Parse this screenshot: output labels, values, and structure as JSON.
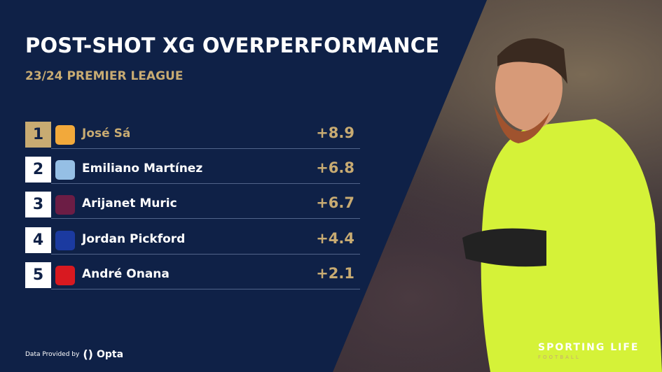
{
  "title": "POST-SHOT XG OVERPERFORMANCE",
  "subtitle": "23/24 PREMIER LEAGUE",
  "colors": {
    "background": "#0f2147",
    "accent": "#c8ab72"
  },
  "rows": [
    {
      "rank": "1",
      "player": "José Sá",
      "club_crest": "wolves-crest",
      "value": "+8.9",
      "crest_color": "#f2a93b"
    },
    {
      "rank": "2",
      "player": "Emiliano Martínez",
      "club_crest": "aston-villa-crest",
      "value": "+6.8",
      "crest_color": "#95bfe5"
    },
    {
      "rank": "3",
      "player": "Arijanet Muric",
      "club_crest": "burnley-crest",
      "value": "+6.7",
      "crest_color": "#6c1d45"
    },
    {
      "rank": "4",
      "player": "Jordan Pickford",
      "club_crest": "everton-crest",
      "value": "+4.4",
      "crest_color": "#1b3aa0"
    },
    {
      "rank": "5",
      "player": "André Onana",
      "club_crest": "man-united-crest",
      "value": "+2.1",
      "crest_color": "#d81920"
    }
  ],
  "footer": {
    "credit": "Data Provided by",
    "provider": "Opta",
    "brand": "SPORTING LIFE",
    "brand_sub": "FOOTBALL"
  }
}
